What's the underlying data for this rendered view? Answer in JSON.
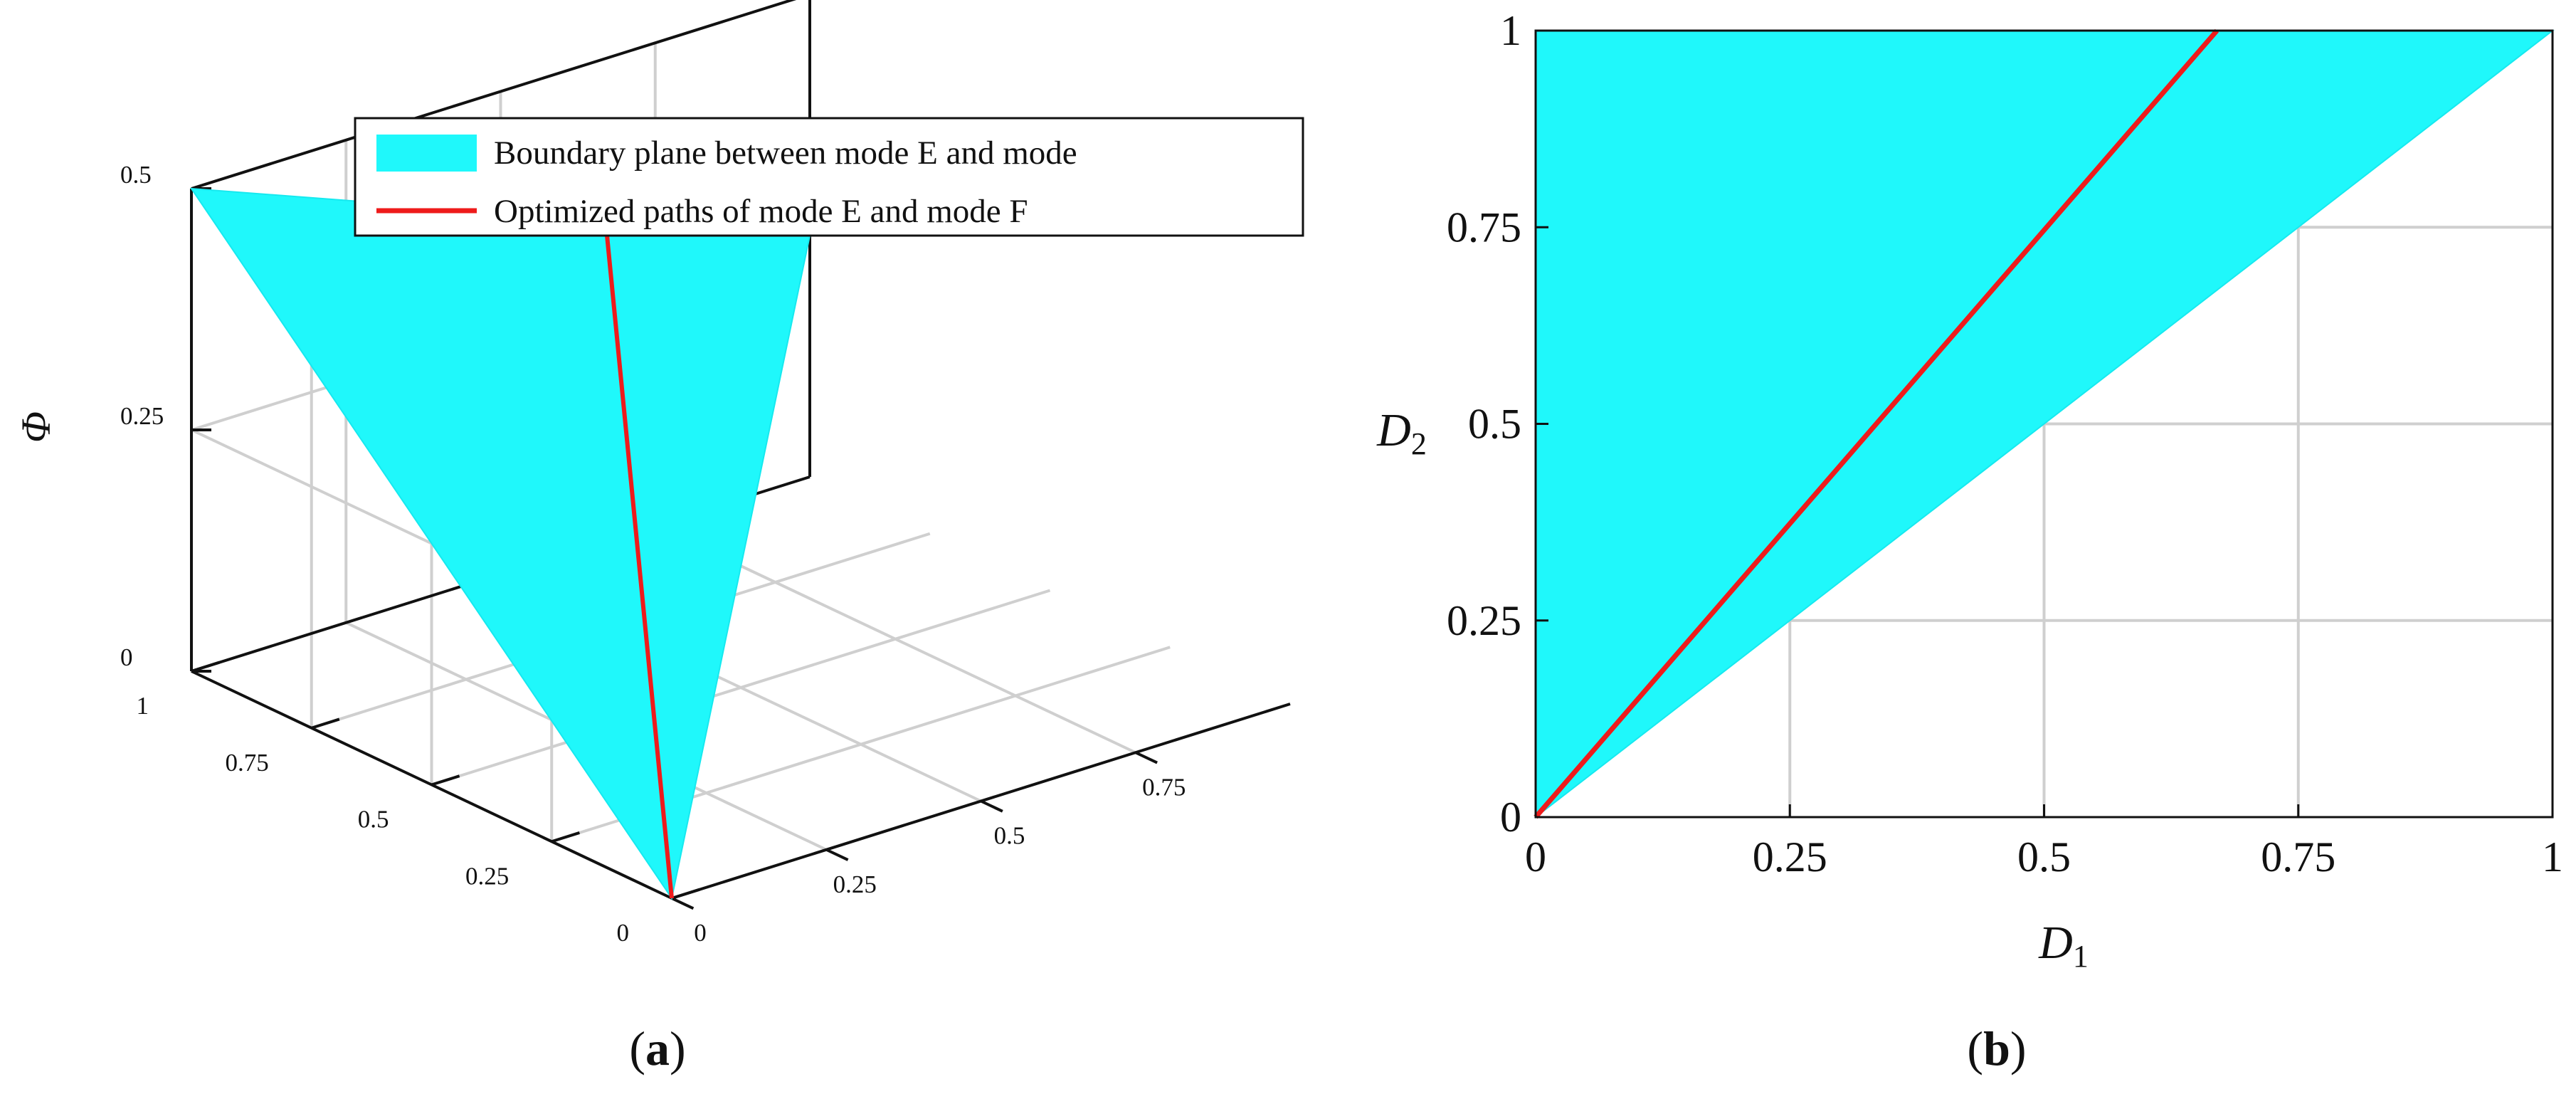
{
  "colors": {
    "surface": "#1ff8fb",
    "surface_edge": "#16e9ef",
    "path": "#ee1b1b",
    "grid": "#cfcfcf",
    "axis": "#111111"
  },
  "panel_a": {
    "caption_open": "(",
    "caption_letter": "a",
    "caption_close": ")",
    "zlabel": "Φ",
    "z_ticks": [
      "0",
      "0.25",
      "0.5"
    ],
    "left_axis_ticks": [
      "0",
      "0.25",
      "0.5",
      "0.75",
      "1"
    ],
    "right_axis_ticks": [
      "0",
      "0.25",
      "0.5",
      "0.75"
    ],
    "legend": [
      {
        "label": "Boundary plane between mode E and mode",
        "symbol": "patch"
      },
      {
        "label": "Optimized paths of mode E and mode F",
        "symbol": "line"
      }
    ]
  },
  "panel_b": {
    "caption_open": "(",
    "caption_letter": "b",
    "caption_close": ")",
    "xlabel_base": "D",
    "xlabel_sub": "1",
    "ylabel_base": "D",
    "ylabel_sub": "2",
    "x_ticks": [
      "0",
      "0.25",
      "0.5",
      "0.75",
      "1"
    ],
    "y_ticks": [
      "0",
      "0.25",
      "0.5",
      "0.75",
      "1"
    ]
  },
  "chart_data": [
    {
      "type": "surface",
      "panel": "a",
      "series": [
        {
          "name": "Boundary plane between mode E and mode",
          "kind": "plane",
          "vertices": [
            [
              0,
              0,
              0
            ],
            [
              0,
              1,
              0.5
            ],
            [
              1,
              1,
              0.25
            ]
          ]
        },
        {
          "name": "Optimized paths of mode E and mode F",
          "kind": "line",
          "points": [
            [
              0,
              0,
              0
            ],
            [
              0.67,
              1,
              0.33
            ]
          ]
        }
      ],
      "xlim": [
        0,
        1
      ],
      "ylim": [
        0,
        1
      ],
      "zlim": [
        0,
        0.5
      ],
      "zlabel": "Φ",
      "legend_position": "top",
      "grid": true
    },
    {
      "type": "area",
      "panel": "b",
      "region_vertices": [
        [
          0,
          0
        ],
        [
          0,
          1
        ],
        [
          1,
          1
        ]
      ],
      "path": {
        "x": [
          0,
          0.67
        ],
        "y": [
          0,
          1
        ]
      },
      "xlim": [
        0,
        1
      ],
      "ylim": [
        0,
        1
      ],
      "xlabel": "D1",
      "ylabel": "D2",
      "grid": true
    }
  ]
}
